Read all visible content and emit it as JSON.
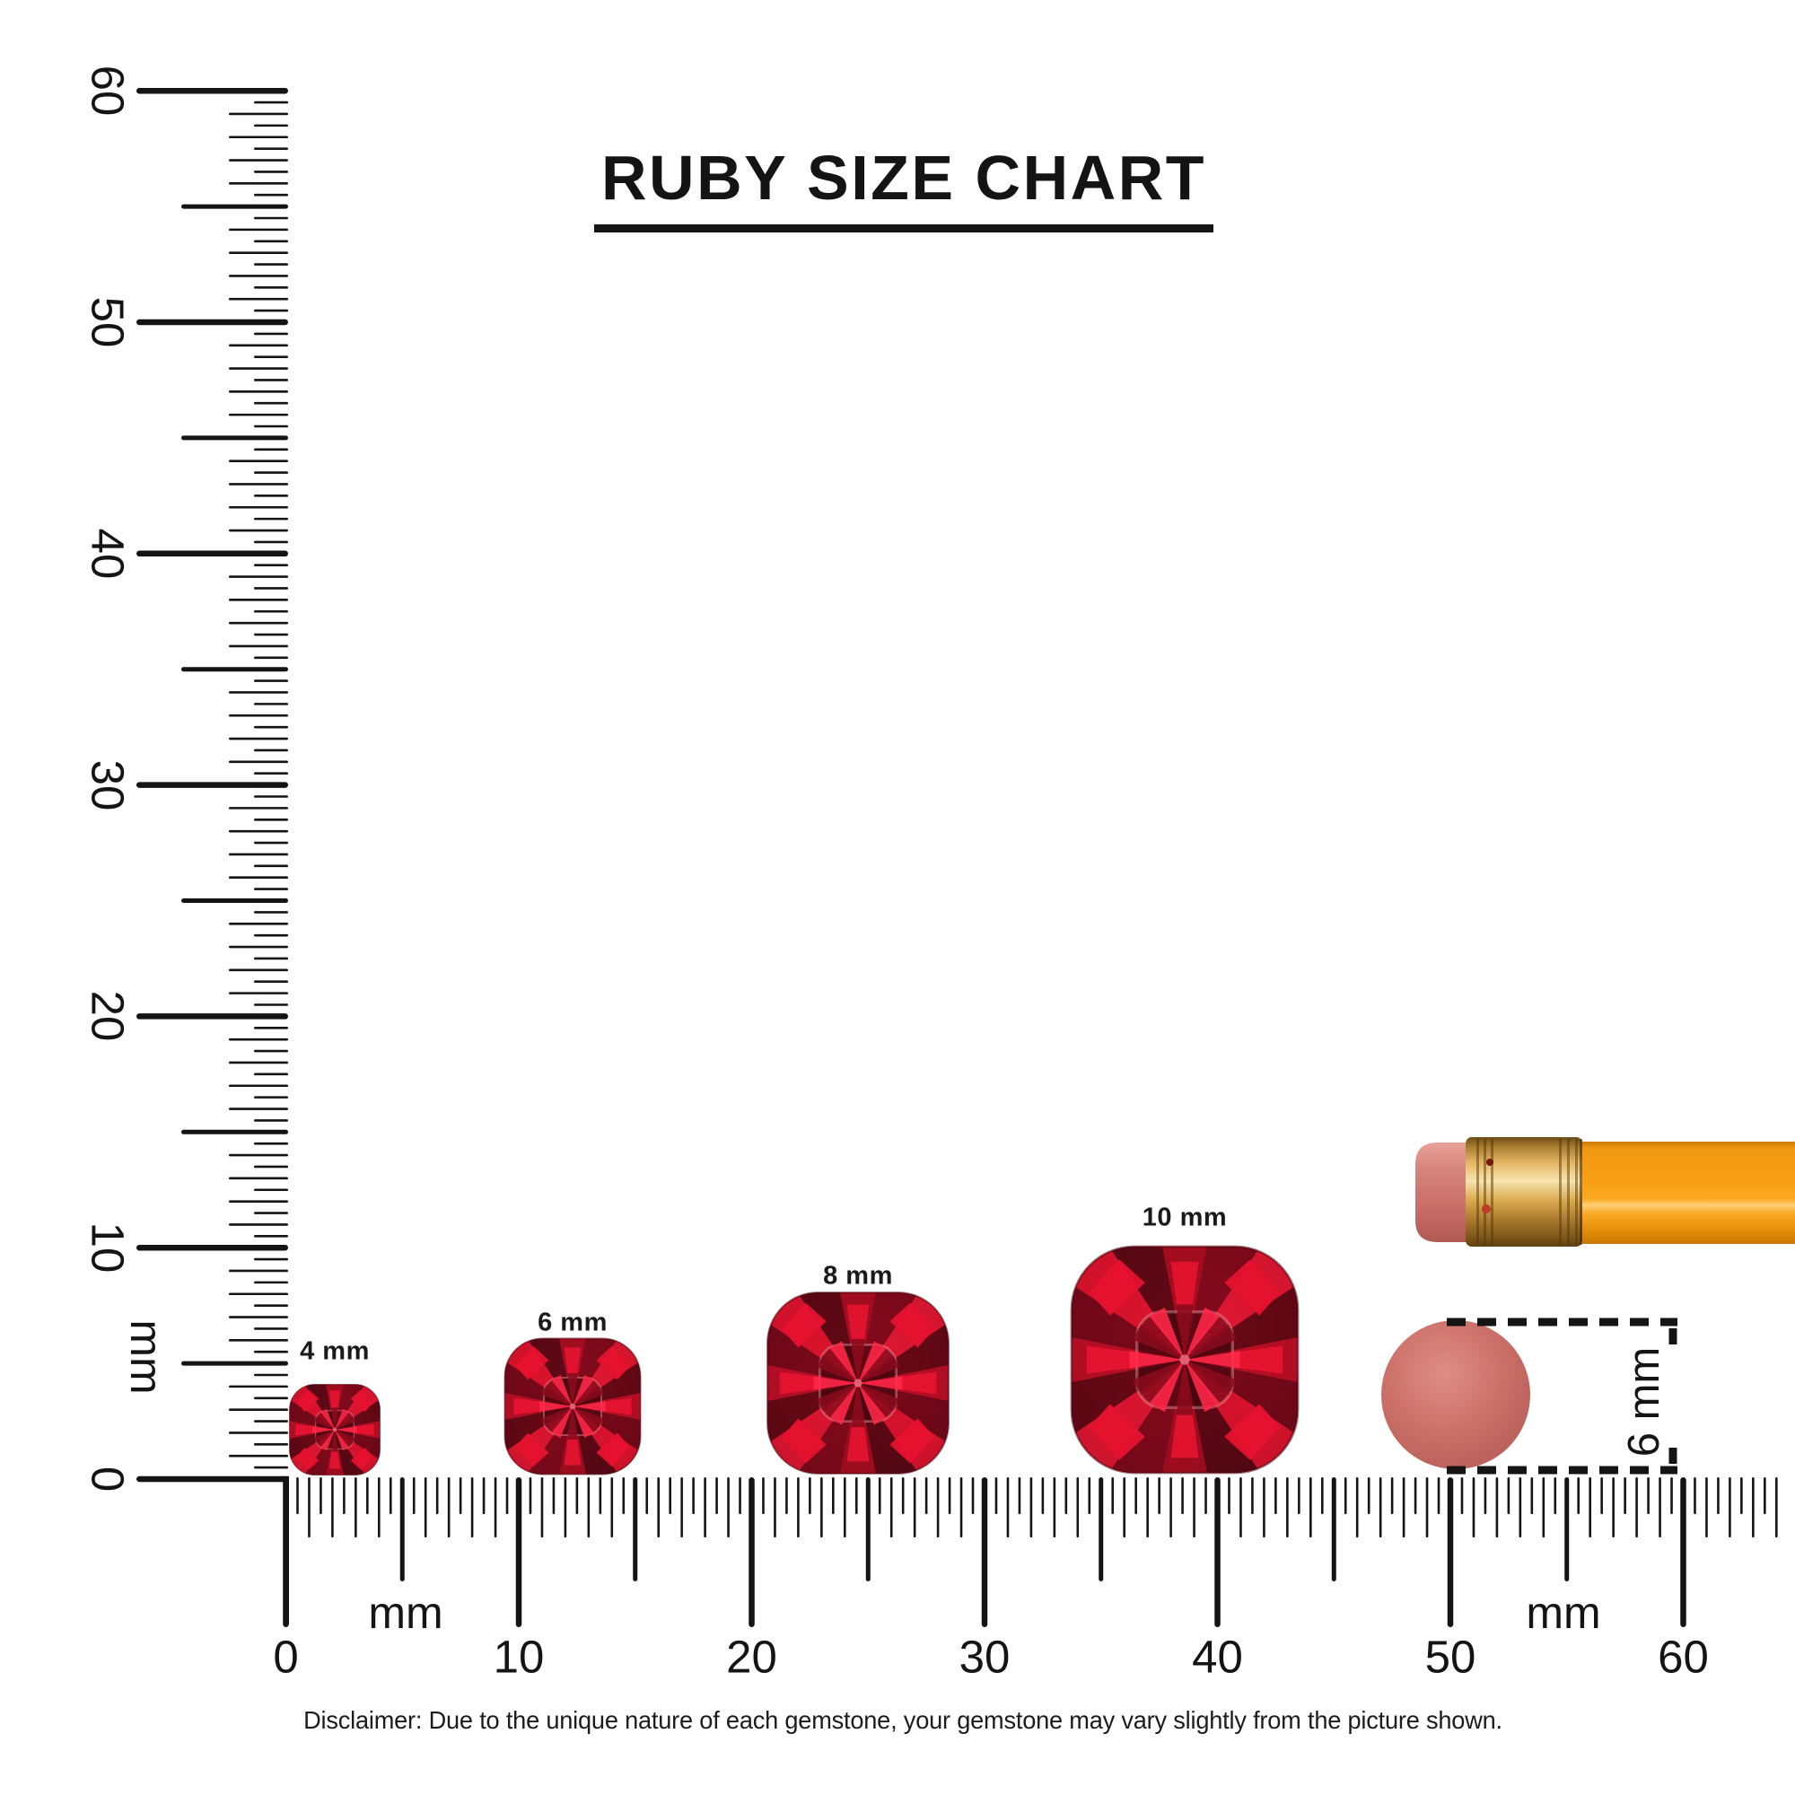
{
  "title": "RUBY SIZE CHART",
  "disclaimer": "Disclaimer: Due to the unique nature of each gemstone, your gemstone may vary slightly from the picture shown.",
  "vertical_ruler": {
    "unit": "mm",
    "tick_labels": [
      "0",
      "10",
      "20",
      "30",
      "40",
      "50",
      "60"
    ],
    "range_mm": 60
  },
  "horizontal_ruler": {
    "unit": "mm",
    "tick_labels": [
      "0",
      "10",
      "20",
      "30",
      "40",
      "50",
      "60"
    ],
    "range_mm": 60,
    "unit_label_count": 2
  },
  "gems": [
    {
      "label": "4 mm",
      "size_mm": 4,
      "shape": "cushion",
      "stone": "ruby"
    },
    {
      "label": "6 mm",
      "size_mm": 6,
      "shape": "cushion",
      "stone": "ruby"
    },
    {
      "label": "8 mm",
      "size_mm": 8,
      "shape": "cushion",
      "stone": "ruby"
    },
    {
      "label": "10 mm",
      "size_mm": 10,
      "shape": "cushion",
      "stone": "ruby"
    }
  ],
  "eraser_reference": {
    "label": "6 mm",
    "object": "pencil eraser"
  },
  "colors": {
    "ink": "#141414",
    "ruby_bright": "#e8122f",
    "ruby_dark": "#530813",
    "eraser_pink": "#cb6f68",
    "ferrule_gold": "#d9a851",
    "pencil_orange": "#f89d16"
  }
}
